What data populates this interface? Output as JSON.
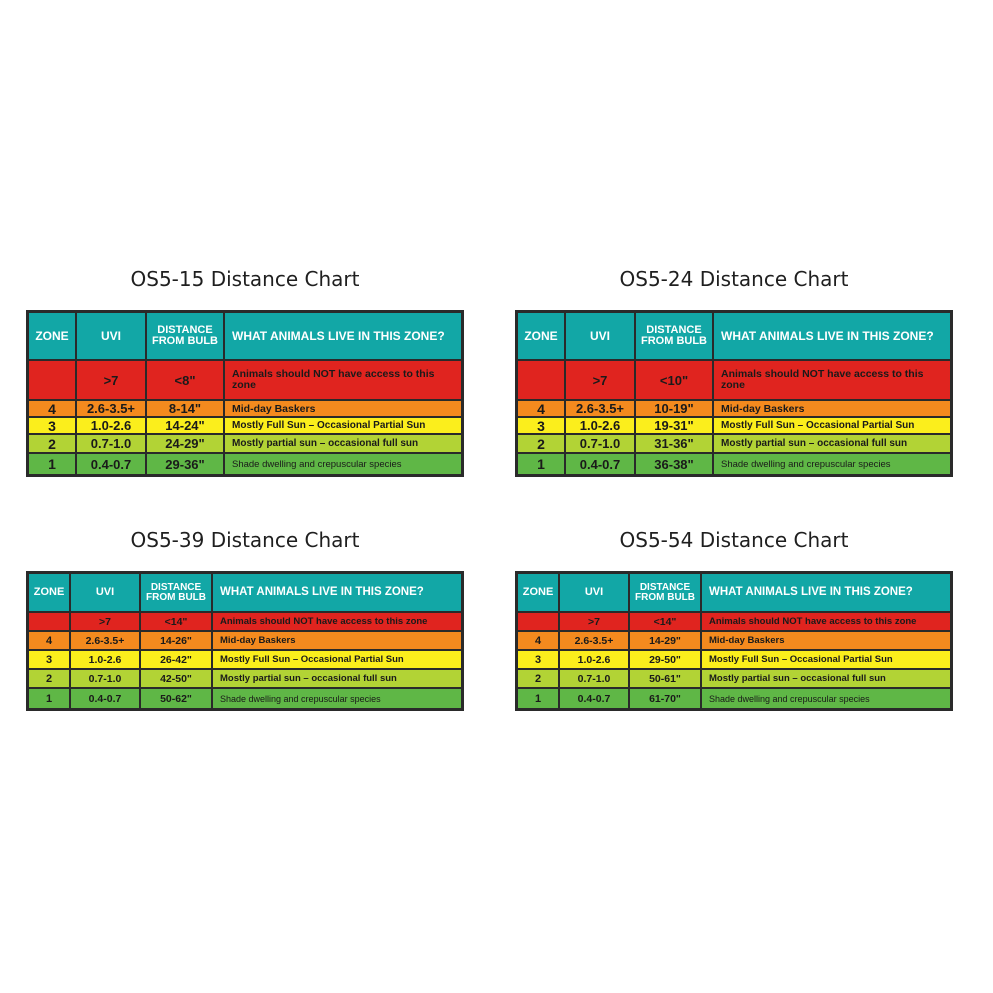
{
  "chart_data": [
    {
      "type": "table",
      "title": "OS5-15 Distance Chart",
      "columns": [
        "ZONE",
        "UVI",
        "DISTANCE",
        "FROM BULB",
        "WHAT ANIMALS LIVE IN THIS ZONE?"
      ],
      "rows": [
        {
          "zone": "",
          "uvi": ">7",
          "distance": "<8\"",
          "description": "Animals should NOT have access to this zone",
          "color": "#e0241f"
        },
        {
          "zone": "4",
          "uvi": "2.6-3.5+",
          "distance": "8-14\"",
          "description": "Mid-day Baskers",
          "color": "#f48a1e"
        },
        {
          "zone": "3",
          "uvi": "1.0-2.6",
          "distance": "14-24\"",
          "description": "Mostly Full Sun – Occasional Partial Sun",
          "color": "#fbee1c"
        },
        {
          "zone": "2",
          "uvi": "0.7-1.0",
          "distance": "24-29\"",
          "description": "Mostly partial sun – occasional full sun",
          "color": "#b2d335"
        },
        {
          "zone": "1",
          "uvi": "0.4-0.7",
          "distance": "29-36\"",
          "description": "Shade dwelling and crepuscular species",
          "color": "#5fb746"
        }
      ]
    },
    {
      "type": "table",
      "title": "OS5-24 Distance Chart",
      "columns": [
        "ZONE",
        "UVI",
        "DISTANCE",
        "FROM BULB",
        "WHAT ANIMALS LIVE IN THIS ZONE?"
      ],
      "rows": [
        {
          "zone": "",
          "uvi": ">7",
          "distance": "<10\"",
          "description": "Animals should NOT have access to this zone",
          "color": "#e0241f"
        },
        {
          "zone": "4",
          "uvi": "2.6-3.5+",
          "distance": "10-19\"",
          "description": "Mid-day Baskers",
          "color": "#f48a1e"
        },
        {
          "zone": "3",
          "uvi": "1.0-2.6",
          "distance": "19-31\"",
          "description": "Mostly Full Sun – Occasional Partial Sun",
          "color": "#fbee1c"
        },
        {
          "zone": "2",
          "uvi": "0.7-1.0",
          "distance": "31-36\"",
          "description": "Mostly partial sun – occasional full sun",
          "color": "#b2d335"
        },
        {
          "zone": "1",
          "uvi": "0.4-0.7",
          "distance": "36-38\"",
          "description": "Shade dwelling and crepuscular species",
          "color": "#5fb746"
        }
      ]
    },
    {
      "type": "table",
      "title": "OS5-39 Distance Chart",
      "columns": [
        "ZONE",
        "UVI",
        "DISTANCE",
        "FROM BULB",
        "WHAT ANIMALS LIVE IN THIS ZONE?"
      ],
      "rows": [
        {
          "zone": "",
          "uvi": ">7",
          "distance": "<14\"",
          "description": "Animals should NOT have access to this zone",
          "color": "#e0241f"
        },
        {
          "zone": "4",
          "uvi": "2.6-3.5+",
          "distance": "14-26\"",
          "description": "Mid-day Baskers",
          "color": "#f48a1e"
        },
        {
          "zone": "3",
          "uvi": "1.0-2.6",
          "distance": "26-42\"",
          "description": "Mostly Full Sun – Occasional Partial Sun",
          "color": "#fbee1c"
        },
        {
          "zone": "2",
          "uvi": "0.7-1.0",
          "distance": "42-50\"",
          "description": "Mostly partial sun – occasional full sun",
          "color": "#b2d335"
        },
        {
          "zone": "1",
          "uvi": "0.4-0.7",
          "distance": "50-62\"",
          "description": "Shade dwelling and crepuscular species",
          "color": "#5fb746"
        }
      ]
    },
    {
      "type": "table",
      "title": "OS5-54 Distance Chart",
      "columns": [
        "ZONE",
        "UVI",
        "DISTANCE",
        "FROM BULB",
        "WHAT ANIMALS LIVE IN THIS ZONE?"
      ],
      "rows": [
        {
          "zone": "",
          "uvi": ">7",
          "distance": "<14\"",
          "description": "Animals should NOT have access to this zone",
          "color": "#e0241f"
        },
        {
          "zone": "4",
          "uvi": "2.6-3.5+",
          "distance": "14-29\"",
          "description": "Mid-day Baskers",
          "color": "#f48a1e"
        },
        {
          "zone": "3",
          "uvi": "1.0-2.6",
          "distance": "29-50\"",
          "description": "Mostly Full Sun – Occasional Partial Sun",
          "color": "#fbee1c"
        },
        {
          "zone": "2",
          "uvi": "0.7-1.0",
          "distance": "50-61\"",
          "description": "Mostly partial sun – occasional full sun",
          "color": "#b2d335"
        },
        {
          "zone": "1",
          "uvi": "0.4-0.7",
          "distance": "61-70\"",
          "description": "Shade dwelling and crepuscular species",
          "color": "#5fb746"
        }
      ]
    }
  ]
}
